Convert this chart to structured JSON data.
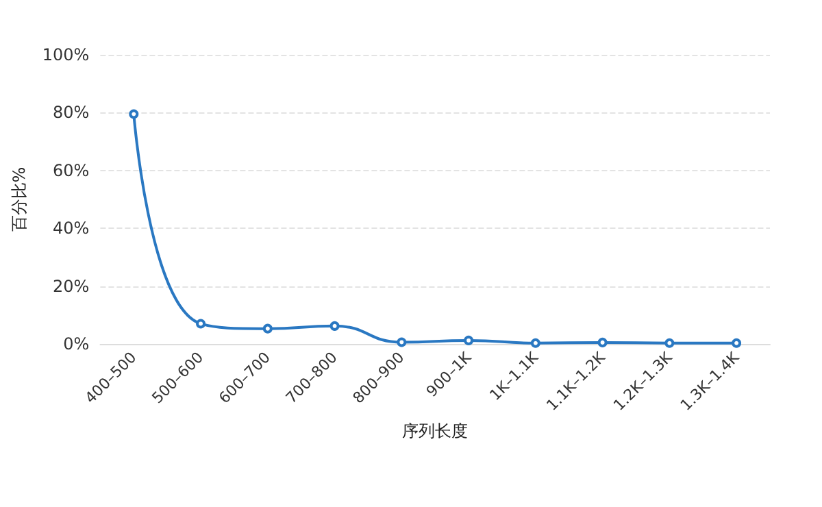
{
  "chart_data": {
    "type": "line",
    "xlabel": "序列长度",
    "ylabel": "百分比%",
    "categories": [
      "400–500",
      "500–600",
      "600–700",
      "700–800",
      "800–900",
      "900–1K",
      "1K–1.1K",
      "1.1K–1.2K",
      "1.2K–1.3K",
      "1.3K–1.4K"
    ],
    "series": [
      {
        "color": "#2a78c2",
        "values": [
          79.5,
          7,
          5.3,
          6.2,
          0.6,
          1.2,
          0.3,
          0.5,
          0.3,
          0.3
        ]
      }
    ],
    "ylim": [
      0,
      100
    ],
    "yticks": [
      {
        "value": 0,
        "label": "0%"
      },
      {
        "value": 20,
        "label": "20%"
      },
      {
        "value": 40,
        "label": "40%"
      },
      {
        "value": 60,
        "label": "60%"
      },
      {
        "value": 80,
        "label": "80%"
      },
      {
        "value": 100,
        "label": "100%"
      }
    ],
    "grid": "y",
    "marker": "circle",
    "line_style": "solid"
  }
}
